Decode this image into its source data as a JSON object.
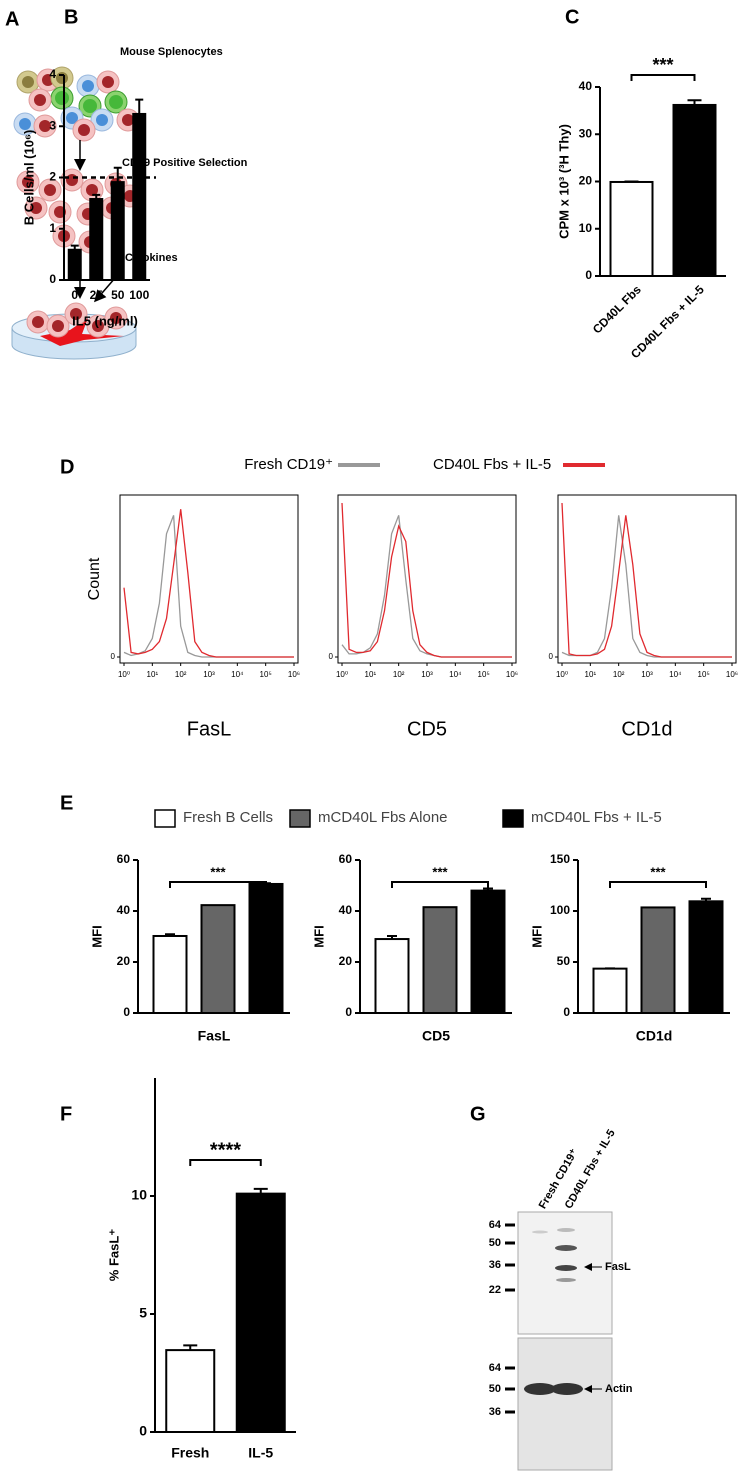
{
  "diagram": {
    "label": "A",
    "texts": [
      "Mouse Splenocytes",
      "CD19 Positive Selection",
      "Cytokines"
    ]
  },
  "chart_data": [
    {
      "type": "bar",
      "label": "B",
      "categories": [
        "0",
        "25",
        "50",
        "100"
      ],
      "values": [
        0.59,
        1.58,
        1.91,
        3.24
      ],
      "errors": [
        0.08,
        0.08,
        0.28,
        0.28
      ],
      "color": "#000000",
      "ylim": [
        0,
        4
      ],
      "yticks": [
        0,
        1,
        2,
        3,
        4
      ],
      "ylabel": "B Cells/ml (10⁶)",
      "xlabel": "IL5 (ng/ml)",
      "hline": 2
    },
    {
      "type": "bar",
      "label": "C",
      "categories": [
        "CD40L Fbs",
        "CD40L Fbs + IL-5"
      ],
      "values": [
        19.9,
        36.2
      ],
      "errors": [
        0.1,
        1
      ],
      "colors": [
        "#ffffff",
        "#000000"
      ],
      "ylim": [
        0,
        40
      ],
      "yticks": [
        0,
        10,
        20,
        30,
        40
      ],
      "ylabel": "CPM x 10³ (³H Thy)",
      "annotation": "***"
    },
    {
      "type": "line",
      "label": "D",
      "ylabel": "Count",
      "xscale": "log",
      "panels": [
        "FasL",
        "CD5",
        "CD1d"
      ],
      "x": [
        1,
        1.78,
        3.16,
        5.62,
        10,
        17.8,
        31.6,
        56.2,
        100,
        178,
        316,
        562,
        1000,
        1778,
        3162,
        5623,
        10000,
        17783,
        31623,
        56234,
        100000,
        177828,
        316228,
        562341,
        1000000
      ],
      "xlim": [
        1,
        1000000
      ],
      "xticks": [
        {
          "value": 1,
          "label": "10⁰"
        },
        {
          "value": 10,
          "label": "10¹"
        },
        {
          "value": 100,
          "label": "10²"
        },
        {
          "value": 1000,
          "label": "10³"
        },
        {
          "value": 10000,
          "label": "10⁴"
        },
        {
          "value": 100000,
          "label": "10⁵"
        },
        {
          "value": 1000000,
          "label": "10⁶"
        }
      ],
      "ylim": [
        0,
        100
      ],
      "yticks": [
        0
      ],
      "series": [
        {
          "name": "Fresh CD19⁺",
          "color": "#999999",
          "values": [
            [
              3,
              1,
              2,
              4,
              12,
              35,
              80,
              92,
              20,
              3,
              1,
              0,
              0,
              0,
              0,
              0,
              0,
              0,
              0,
              0,
              0,
              0,
              0,
              0,
              0
            ],
            [
              8,
              2,
              2,
              3,
              6,
              15,
              40,
              80,
              92,
              50,
              12,
              4,
              2,
              1,
              0,
              0,
              0,
              0,
              0,
              0,
              0,
              0,
              0,
              0,
              0
            ],
            [
              3,
              1,
              1,
              1,
              1,
              3,
              12,
              45,
              92,
              60,
              12,
              3,
              1,
              0,
              0,
              0,
              0,
              0,
              0,
              0,
              0,
              0,
              0,
              0,
              0
            ]
          ]
        },
        {
          "name": "CD40L Fbs + IL-5",
          "color": "#e02a2f",
          "values": [
            [
              45,
              3,
              2,
              3,
              5,
              10,
              25,
              60,
              96,
              55,
              10,
              3,
              1,
              0,
              0,
              0,
              0,
              0,
              0,
              0,
              0,
              0,
              0,
              0,
              0
            ],
            [
              100,
              5,
              3,
              3,
              4,
              10,
              30,
              65,
              85,
              75,
              30,
              8,
              3,
              1,
              0,
              0,
              0,
              0,
              0,
              0,
              0,
              0,
              0,
              0,
              0
            ],
            [
              100,
              2,
              1,
              1,
              1,
              2,
              5,
              20,
              55,
              92,
              60,
              15,
              3,
              1,
              0,
              0,
              0,
              0,
              0,
              0,
              0,
              0,
              0,
              0,
              0
            ]
          ]
        }
      ]
    },
    {
      "type": "bar",
      "label": "E",
      "categories": [
        "FasL",
        "CD5",
        "CD1d"
      ],
      "series": [
        {
          "name": "Fresh B Cells",
          "color": "#ffffff",
          "values": [
            30.2,
            29,
            43.5
          ],
          "errors": [
            0.7,
            1.2,
            0.3
          ]
        },
        {
          "name": "mCD40L Fbs Alone",
          "color": "#666666",
          "values": [
            42.3,
            41.5,
            103.5
          ]
        },
        {
          "name": "mCD40L Fbs + IL-5",
          "color": "#000000",
          "values": [
            50.6,
            48,
            109.5
          ],
          "errors": [
            0.3,
            0.8,
            2.5
          ]
        }
      ],
      "axes": [
        {
          "ylim": [
            0,
            60
          ],
          "yticks": [
            0,
            20,
            40,
            60
          ]
        },
        {
          "ylim": [
            0,
            60
          ],
          "yticks": [
            0,
            20,
            40,
            60
          ]
        },
        {
          "ylim": [
            0,
            150
          ],
          "yticks": [
            0,
            50,
            100,
            150
          ]
        }
      ],
      "ylabel": "MFI",
      "annotation": "***"
    },
    {
      "type": "bar",
      "label": "F",
      "categories": [
        "Fresh",
        "IL-5"
      ],
      "values": [
        3.47,
        10.1
      ],
      "errors": [
        0.2,
        0.2
      ],
      "colors": [
        "#ffffff",
        "#000000"
      ],
      "ylim": [
        0,
        15
      ],
      "yticks": [
        0,
        5,
        10
      ],
      "ylabel": "% FasL⁺",
      "annotation": "****"
    }
  ],
  "blot": {
    "label": "G",
    "lanes": [
      "Fresh CD19⁺",
      "CD40L Fbs + IL-5"
    ],
    "top": {
      "markers": [
        64,
        50,
        36,
        22
      ],
      "band": "FasL"
    },
    "bottom": {
      "markers": [
        64,
        50,
        36
      ],
      "band": "Actin"
    }
  }
}
